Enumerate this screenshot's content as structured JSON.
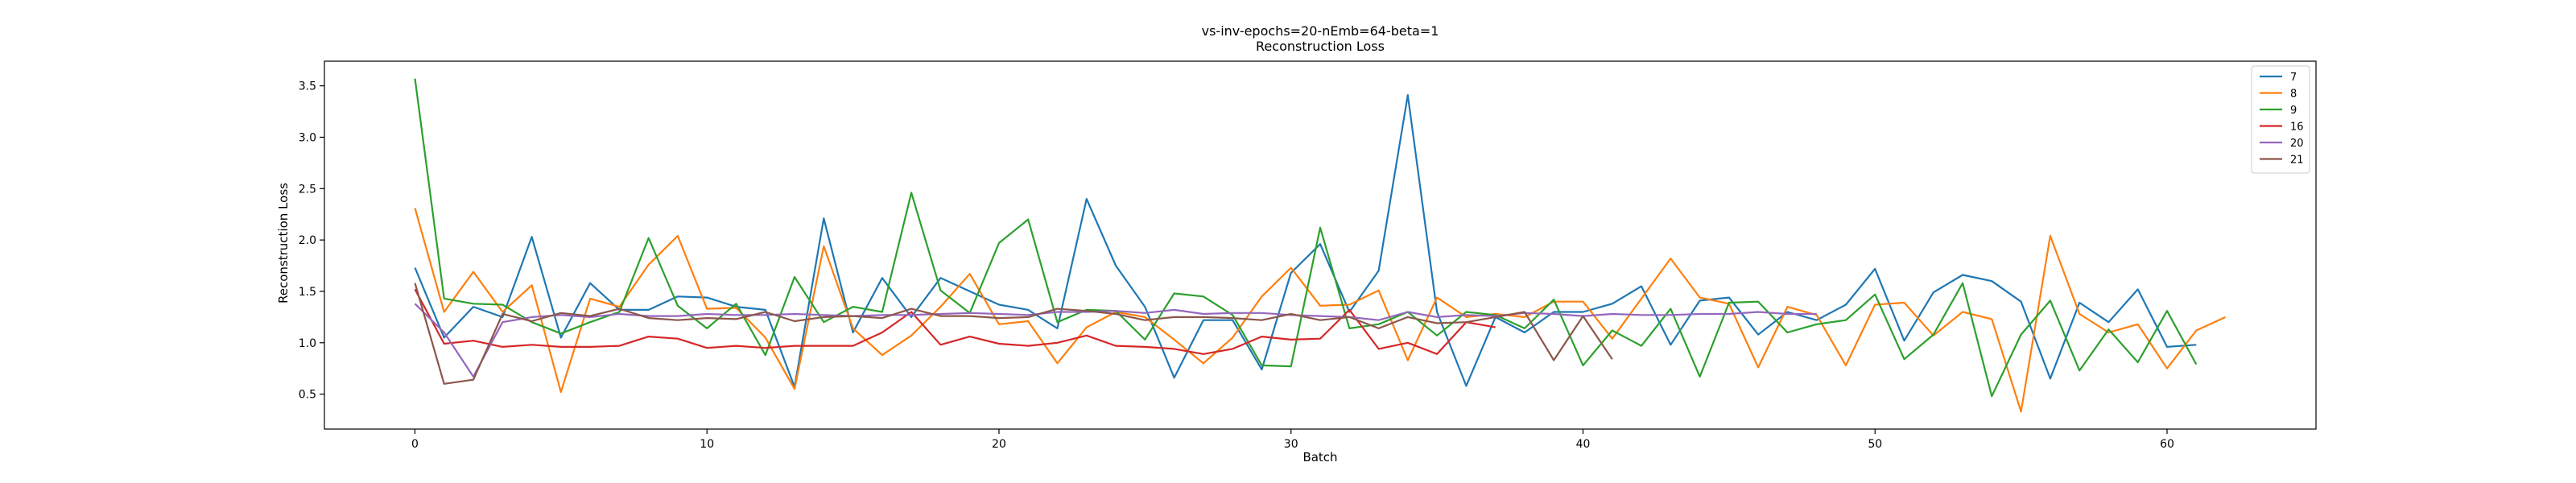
{
  "chart_data": {
    "type": "line",
    "title": "vs-inv-epochs=20-nEmb=64-beta=1",
    "subtitle": "Reconstruction Loss",
    "xlabel": "Batch",
    "ylabel": "Reconstruction Loss",
    "xlim": [
      -3.1,
      65.1
    ],
    "ylim": [
      0.16,
      3.74
    ],
    "xticks": [
      0,
      10,
      20,
      30,
      40,
      50,
      60
    ],
    "yticks": [
      0.5,
      1.0,
      1.5,
      2.0,
      2.5,
      3.0,
      3.5
    ],
    "grid": false,
    "legend_position": "top-right",
    "series": [
      {
        "name": "7",
        "color": "#1f77b4",
        "values": [
          1.73,
          1.05,
          1.35,
          1.25,
          2.03,
          1.05,
          1.58,
          1.32,
          1.32,
          1.45,
          1.44,
          1.35,
          1.32,
          0.57,
          2.21,
          1.1,
          1.63,
          1.25,
          1.63,
          1.5,
          1.37,
          1.32,
          1.14,
          2.4,
          1.75,
          1.35,
          0.66,
          1.22,
          1.22,
          0.74,
          1.68,
          1.96,
          1.3,
          1.7,
          3.41,
          1.3,
          0.58,
          1.25,
          1.1,
          1.3,
          1.3,
          1.38,
          1.55,
          0.98,
          1.41,
          1.44,
          1.08,
          1.3,
          1.22,
          1.37,
          1.72,
          1.02,
          1.49,
          1.66,
          1.6,
          1.4,
          0.65,
          1.39,
          1.2,
          1.52,
          0.96,
          0.98
        ]
      },
      {
        "name": "8",
        "color": "#ff7f0e",
        "values": [
          2.31,
          1.3,
          1.69,
          1.3,
          1.56,
          0.52,
          1.43,
          1.35,
          1.76,
          2.04,
          1.33,
          1.34,
          1.05,
          0.55,
          1.94,
          1.14,
          0.88,
          1.07,
          1.35,
          1.67,
          1.18,
          1.21,
          0.8,
          1.15,
          1.3,
          1.25,
          1.03,
          0.8,
          1.05,
          1.45,
          1.73,
          1.36,
          1.37,
          1.51,
          0.83,
          1.44,
          1.25,
          1.28,
          1.25,
          1.4,
          1.4,
          1.04,
          1.43,
          1.82,
          1.44,
          1.38,
          0.76,
          1.35,
          1.27,
          0.78,
          1.37,
          1.39,
          1.07,
          1.3,
          1.23,
          0.33,
          2.04,
          1.28,
          1.1,
          1.18,
          0.75,
          1.12,
          1.25
        ]
      },
      {
        "name": "9",
        "color": "#2ca02c",
        "values": [
          3.57,
          1.43,
          1.38,
          1.37,
          1.2,
          1.09,
          1.2,
          1.3,
          2.02,
          1.36,
          1.14,
          1.38,
          0.88,
          1.64,
          1.2,
          1.35,
          1.3,
          2.46,
          1.51,
          1.29,
          1.97,
          2.2,
          1.2,
          1.32,
          1.31,
          1.03,
          1.48,
          1.45,
          1.27,
          0.78,
          0.77,
          2.12,
          1.14,
          1.18,
          1.3,
          1.07,
          1.3,
          1.27,
          1.14,
          1.42,
          0.78,
          1.12,
          0.97,
          1.33,
          0.67,
          1.39,
          1.4,
          1.1,
          1.18,
          1.22,
          1.47,
          0.84,
          1.08,
          1.58,
          0.48,
          1.08,
          1.41,
          0.73,
          1.13,
          0.81,
          1.31,
          0.79
        ]
      },
      {
        "name": "16",
        "color": "#d62728",
        "values": [
          1.52,
          0.99,
          1.02,
          0.96,
          0.98,
          0.96,
          0.96,
          0.97,
          1.06,
          1.04,
          0.95,
          0.97,
          0.95,
          0.97,
          0.97,
          0.97,
          1.1,
          1.3,
          0.98,
          1.06,
          0.99,
          0.97,
          1.0,
          1.07,
          0.97,
          0.96,
          0.94,
          0.89,
          0.94,
          1.06,
          1.03,
          1.04,
          1.32,
          0.94,
          1.0,
          0.89,
          1.2,
          1.15
        ]
      },
      {
        "name": "20",
        "color": "#9467bd",
        "values": [
          1.38,
          1.1,
          0.67,
          1.2,
          1.25,
          1.27,
          1.25,
          1.28,
          1.26,
          1.26,
          1.28,
          1.27,
          1.27,
          1.28,
          1.27,
          1.26,
          1.27,
          1.27,
          1.28,
          1.29,
          1.28,
          1.27,
          1.3,
          1.3,
          1.31,
          1.29,
          1.32,
          1.28,
          1.29,
          1.29,
          1.27,
          1.26,
          1.25,
          1.22,
          1.3,
          1.25,
          1.27,
          1.26,
          1.29,
          1.28,
          1.26,
          1.28,
          1.27,
          1.27,
          1.28,
          1.28,
          1.3,
          1.28,
          1.28
        ]
      },
      {
        "name": "21",
        "color": "#8c564b",
        "values": [
          1.58,
          0.6,
          0.64,
          1.28,
          1.21,
          1.29,
          1.26,
          1.33,
          1.24,
          1.22,
          1.24,
          1.23,
          1.3,
          1.21,
          1.25,
          1.26,
          1.24,
          1.33,
          1.26,
          1.26,
          1.24,
          1.25,
          1.33,
          1.31,
          1.28,
          1.22,
          1.25,
          1.25,
          1.24,
          1.22,
          1.28,
          1.22,
          1.25,
          1.14,
          1.25,
          1.19,
          1.2,
          1.25,
          1.3,
          0.83,
          1.26,
          0.84
        ]
      }
    ]
  }
}
